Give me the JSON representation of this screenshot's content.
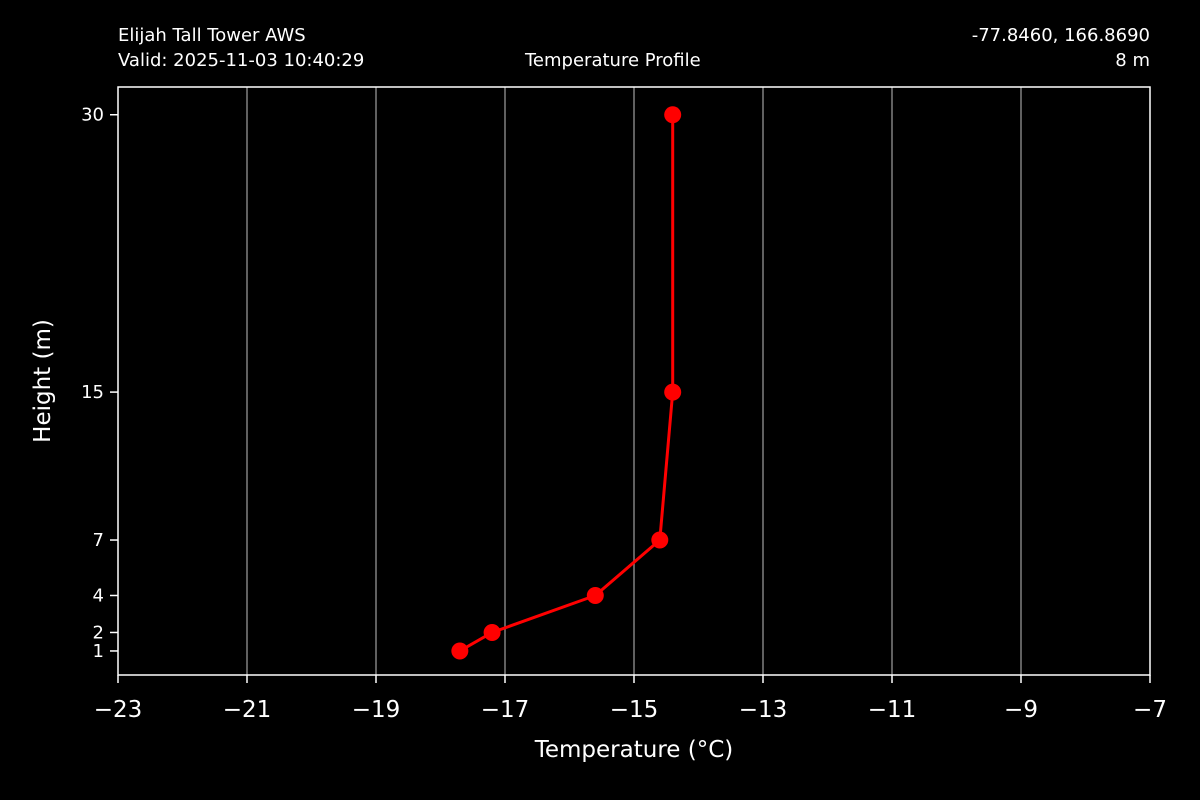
{
  "header": {
    "station": "Elijah Tall Tower AWS",
    "valid": "Valid: 2025-11-03 10:40:29",
    "title": "Temperature Profile",
    "coords": "-77.8460, 166.8690",
    "elevation": "8 m"
  },
  "chart_data": {
    "type": "line",
    "title": "Temperature Profile",
    "xlabel": "Temperature (°C)",
    "ylabel": "Height (m)",
    "xlim": [
      -23,
      -7
    ],
    "ylim": [
      -0.3,
      31.5
    ],
    "xticks": [
      -23,
      -21,
      -19,
      -17,
      -15,
      -13,
      -11,
      -9,
      -7
    ],
    "xtick_labels": [
      "−23",
      "−21",
      "−19",
      "−17",
      "−15",
      "−13",
      "−11",
      "−9",
      "−7"
    ],
    "yticks": [
      1,
      2,
      4,
      7,
      15,
      30
    ],
    "ytick_labels": [
      "1",
      "2",
      "4",
      "7",
      "15",
      "30"
    ],
    "grid": "vertical",
    "series": [
      {
        "color": "#ff0000",
        "x": [
          -17.7,
          -17.2,
          -15.6,
          -14.6,
          -14.4,
          -14.4
        ],
        "y": [
          1,
          2,
          4,
          7,
          15,
          30
        ]
      }
    ],
    "colors": {
      "background": "#000000",
      "axes": "#ffffff",
      "grid": "#808080",
      "line": "#ff0000"
    }
  }
}
